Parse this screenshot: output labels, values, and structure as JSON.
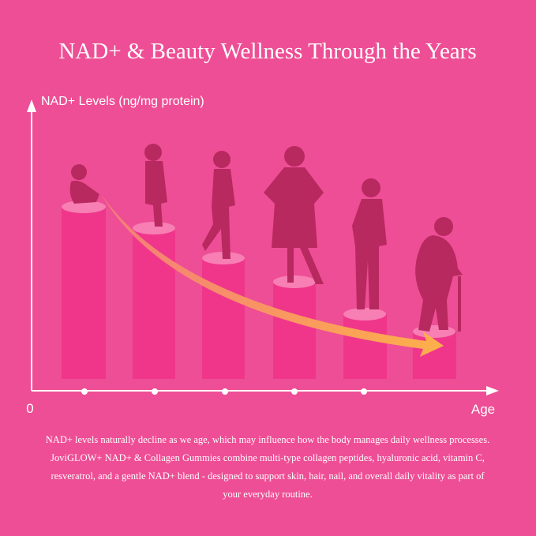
{
  "header": {
    "title": "NAD+ & Beauty Wellness Through the Years"
  },
  "diagram": {
    "y_axis_label": "NAD+ Levels (ng/mg protein)",
    "origin_label": "0",
    "x_axis_label": "Age"
  },
  "description": {
    "lines": [
      "NAD+ levels naturally decline as we age, which may influence how the body manages daily wellness processes.",
      "JoviGLOW+ NAD+ & Collagen Gummies combine multi-type collagen peptides, hyaluronic acid, vitamin C,",
      "resveratrol, and a gentle NAD+ blend - designed to support skin, hair, nail, and overall daily vitality as part of",
      "your everyday routine."
    ]
  }
}
